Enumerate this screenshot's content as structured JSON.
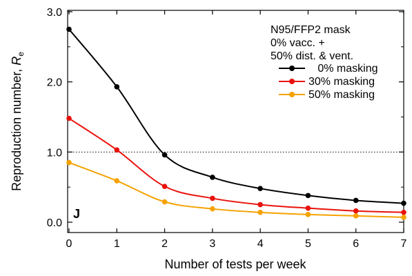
{
  "chart_data": {
    "type": "line",
    "panel_label": "J",
    "xlabel": "Number of tests per week",
    "ylabel_prefix": "Reproduction number, ",
    "ylabel_var": "R",
    "ylabel_sub": "e",
    "xlim": [
      0,
      7
    ],
    "ylim": [
      0,
      3.0
    ],
    "x_ticks": [
      "0",
      "1",
      "2",
      "3",
      "4",
      "5",
      "6",
      "7"
    ],
    "y_ticks": [
      "0.0",
      "1.0",
      "2.0",
      "3.0"
    ],
    "reference_line": {
      "y": 1.0,
      "style": "dotted"
    },
    "legend": {
      "header_lines": [
        "N95/FFP2 mask",
        "0% vacc. +",
        "50% dist. & vent."
      ],
      "placement": "top-right"
    },
    "x": [
      0,
      1,
      2,
      3,
      4,
      5,
      6,
      7
    ],
    "series": [
      {
        "name": "0% masking",
        "legend_label": "   0% masking",
        "color": "#000000",
        "values": [
          2.75,
          1.93,
          0.96,
          0.64,
          0.48,
          0.38,
          0.31,
          0.27
        ]
      },
      {
        "name": "30% masking",
        "legend_label": "30% masking",
        "color": "#e8120c",
        "values": [
          1.48,
          1.03,
          0.51,
          0.34,
          0.25,
          0.2,
          0.16,
          0.14
        ]
      },
      {
        "name": "50% masking",
        "legend_label": "50% masking",
        "color": "#f5a200",
        "values": [
          0.85,
          0.59,
          0.29,
          0.19,
          0.14,
          0.11,
          0.09,
          0.07
        ]
      }
    ]
  }
}
